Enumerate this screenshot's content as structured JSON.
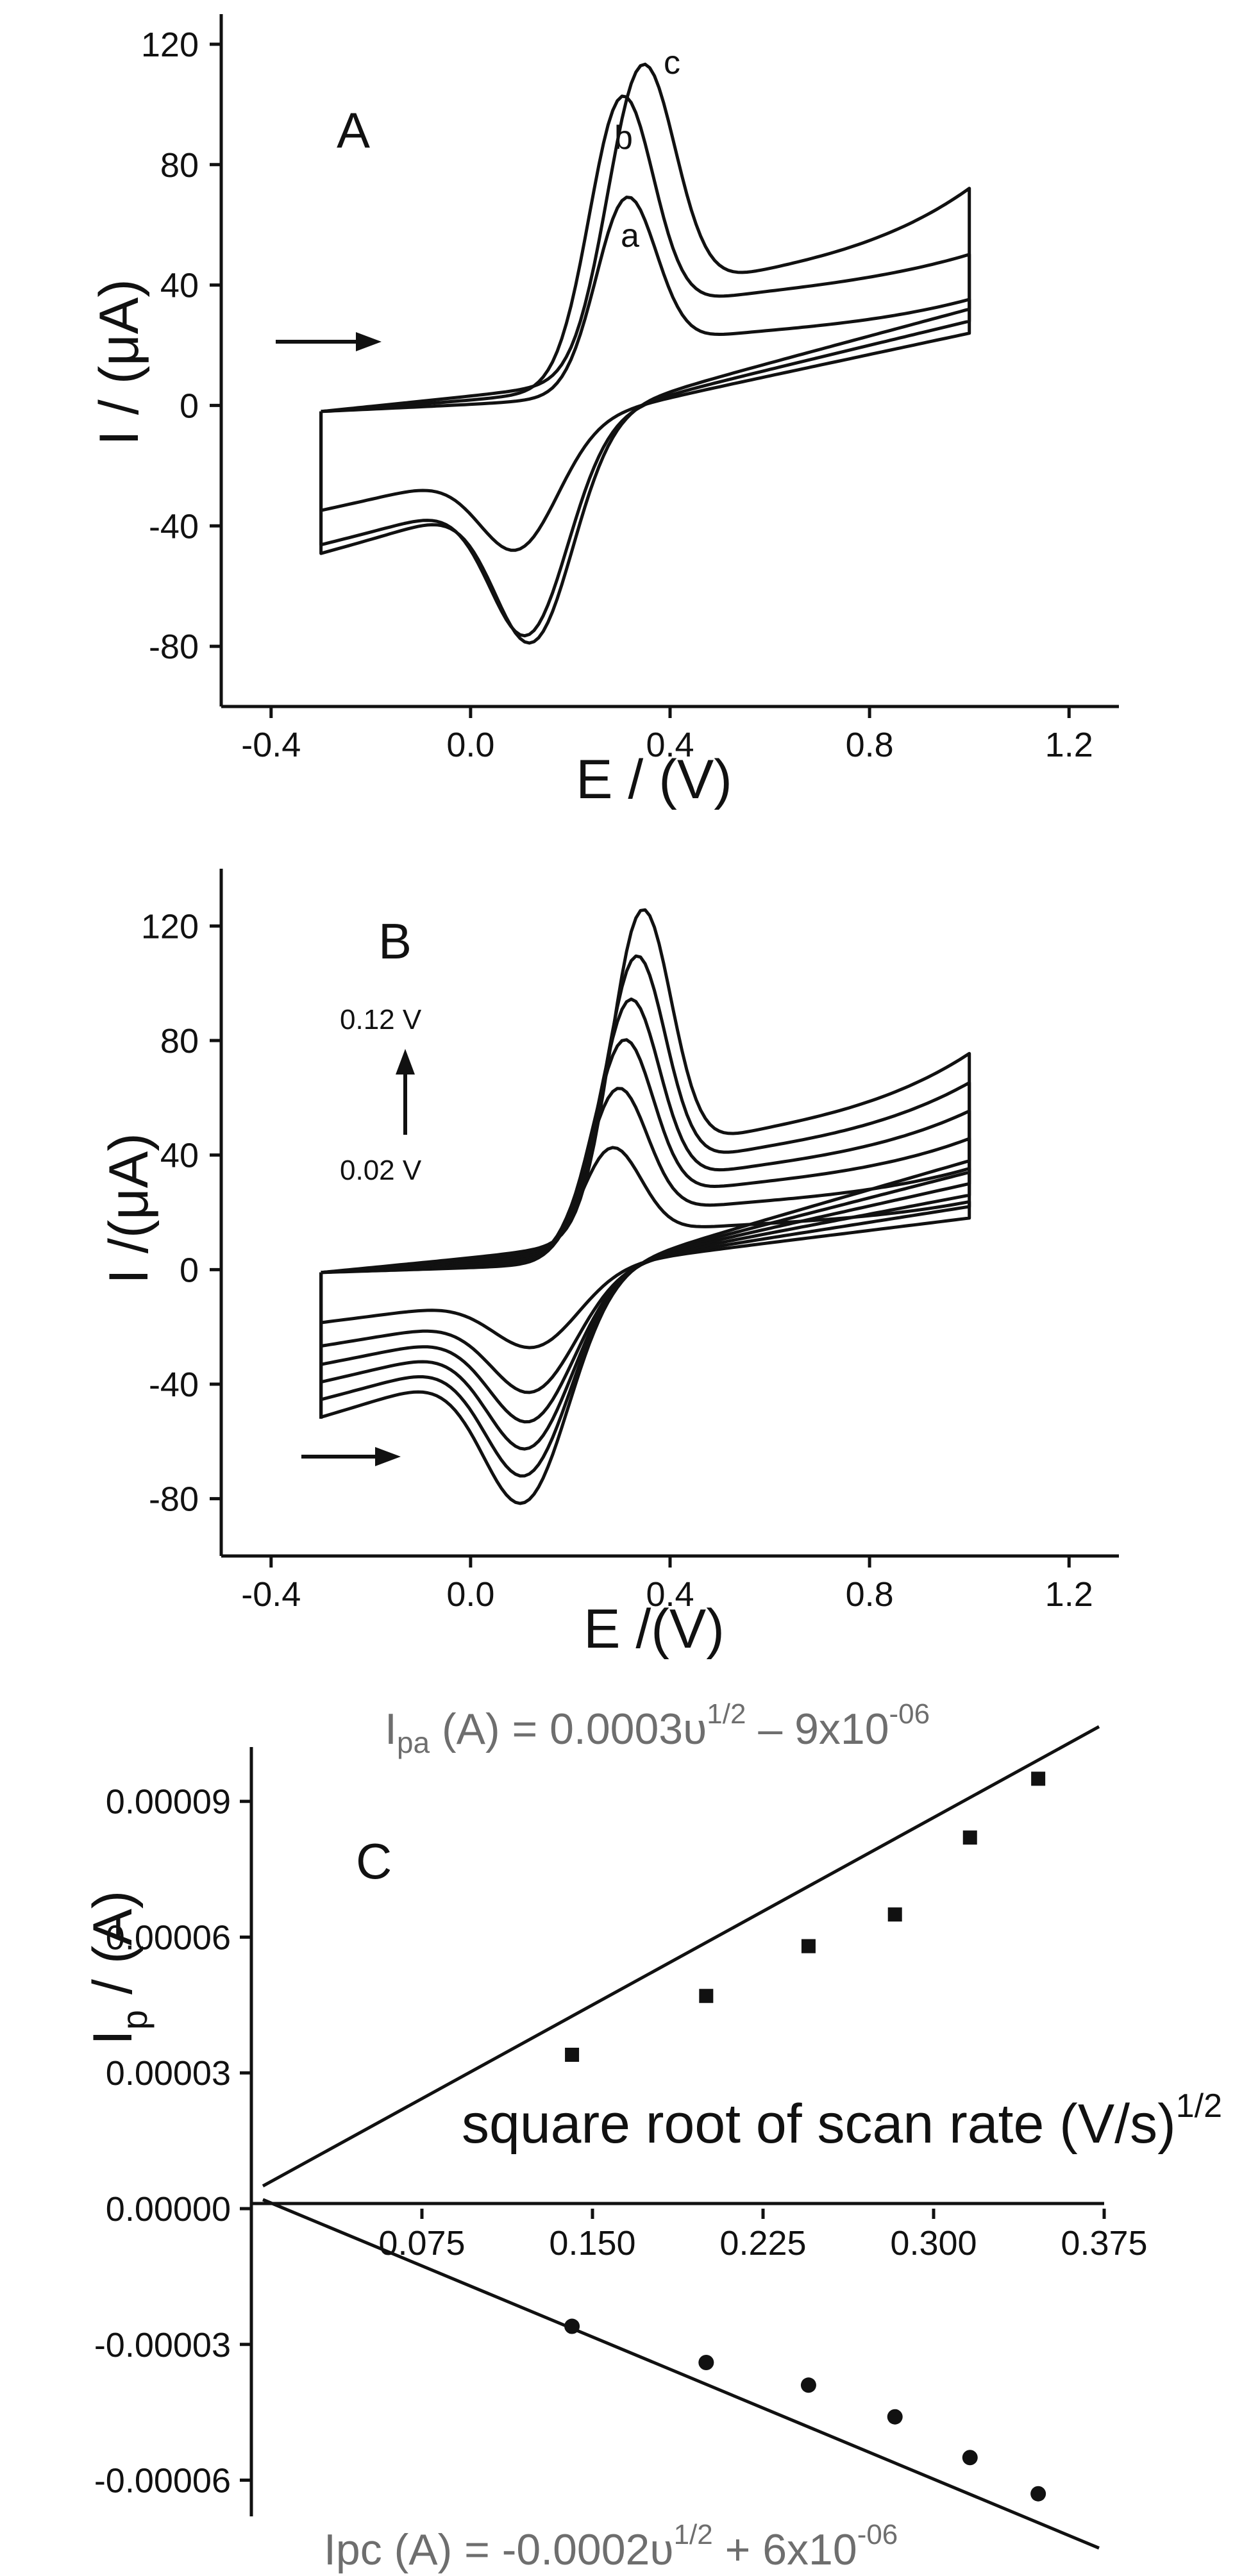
{
  "chart_data": [
    {
      "panel": "A",
      "type": "line",
      "xlabel": "E / (V)",
      "ylabel": "I / (μA)",
      "xlim": [
        -0.5,
        1.3
      ],
      "ylim": [
        -100,
        130
      ],
      "xticks": [
        "-0.4",
        "0.0",
        "0.4",
        "0.8",
        "1.2"
      ],
      "yticks": [
        "120",
        "80",
        "40",
        "0",
        "-40",
        "-80"
      ],
      "series": [
        {
          "name": "a",
          "peak_anodic": {
            "E": 0.31,
            "I": 69
          },
          "peak_cathodic": {
            "E": 0.1,
            "I": -44
          }
        },
        {
          "name": "b",
          "peak_anodic": {
            "E": 0.3,
            "I": 101
          },
          "peak_cathodic": {
            "E": 0.12,
            "I": -76
          }
        },
        {
          "name": "c",
          "peak_anodic": {
            "E": 0.34,
            "I": 108
          },
          "peak_cathodic": {
            "E": 0.13,
            "I": -79
          }
        }
      ],
      "scan_direction": "positive"
    },
    {
      "panel": "B",
      "type": "line",
      "xlabel": "E /(V)",
      "ylabel": "I /(μA)",
      "xlim": [
        -0.5,
        1.3
      ],
      "ylim": [
        -100,
        140
      ],
      "xticks": [
        "-0.4",
        "0.0",
        "0.4",
        "0.8",
        "1.2"
      ],
      "yticks": [
        "120",
        "80",
        "40",
        "0",
        "-40",
        "-80"
      ],
      "annotations": [
        "0.12 V",
        "0.02 V"
      ],
      "series": [
        {
          "peak_anodic": 42,
          "peak_cathodic": -29
        },
        {
          "peak_anodic": 62,
          "peak_cathodic": -45
        },
        {
          "peak_anodic": 78,
          "peak_cathodic": -55
        },
        {
          "peak_anodic": 91,
          "peak_cathodic": -64
        },
        {
          "peak_anodic": 105,
          "peak_cathodic": -73
        },
        {
          "peak_anodic": 120,
          "peak_cathodic": -82
        }
      ]
    },
    {
      "panel": "C",
      "type": "scatter",
      "xlabel": "square root of scan rate (V/s)",
      "xlabel_sup": "1/2",
      "ylabel_main": "I",
      "ylabel_sub": "p",
      "ylabel_rest": " / (A)",
      "xlim": [
        0.0,
        0.375
      ],
      "ylim": [
        -6.8e-05,
        0.000102
      ],
      "xticks": [
        "0.075",
        "0.150",
        "0.225",
        "0.300",
        "0.375"
      ],
      "yticks": [
        "0.00009",
        "0.00006",
        "0.00003",
        "0.00000",
        "-0.00003",
        "-0.00006"
      ],
      "series": [
        {
          "name": "Ipa",
          "marker": "square",
          "points": [
            [
              0.141,
              3.4e-05
            ],
            [
              0.2,
              4.7e-05
            ],
            [
              0.245,
              5.8e-05
            ],
            [
              0.283,
              6.5e-05
            ],
            [
              0.316,
              8.2e-05
            ],
            [
              0.346,
              9.5e-05
            ]
          ],
          "fit": {
            "slope": 0.0003,
            "intercept": -9e-06
          }
        },
        {
          "name": "Ipc",
          "marker": "circle",
          "points": [
            [
              0.141,
              -2.6e-05
            ],
            [
              0.2,
              -3.4e-05
            ],
            [
              0.245,
              -3.9e-05
            ],
            [
              0.283,
              -4.6e-05
            ],
            [
              0.316,
              -5.5e-05
            ],
            [
              0.346,
              -6.3e-05
            ]
          ],
          "fit": {
            "slope": -0.0002,
            "intercept": 6e-06
          }
        }
      ],
      "eq_top": {
        "lhs": "I",
        "sub": "pa",
        "a": " (A) = 0.0003υ",
        "sup1": "1/2",
        "b": " – 9x10",
        "sup2": "-06"
      },
      "eq_bottom": {
        "a": "Ipc (A) = -0.0002υ",
        "sup1": "1/2",
        "b": " + 6x10",
        "sup2": "-06"
      }
    }
  ]
}
